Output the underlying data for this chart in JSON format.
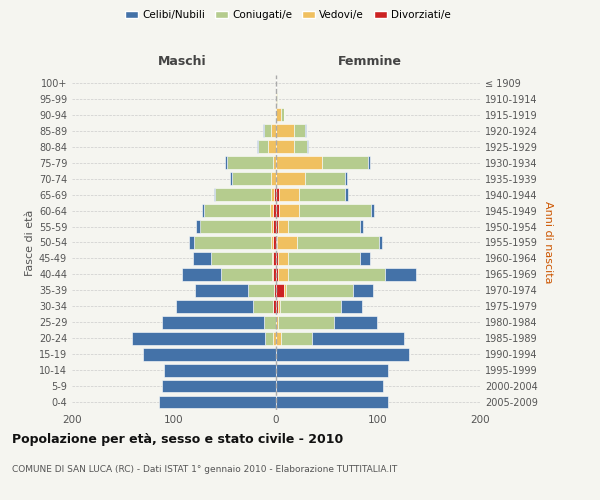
{
  "age_groups": [
    "0-4",
    "5-9",
    "10-14",
    "15-19",
    "20-24",
    "25-29",
    "30-34",
    "35-39",
    "40-44",
    "45-49",
    "50-54",
    "55-59",
    "60-64",
    "65-69",
    "70-74",
    "75-79",
    "80-84",
    "85-89",
    "90-94",
    "95-99",
    "100+"
  ],
  "birth_years": [
    "2005-2009",
    "2000-2004",
    "1995-1999",
    "1990-1994",
    "1985-1989",
    "1980-1984",
    "1975-1979",
    "1970-1974",
    "1965-1969",
    "1960-1964",
    "1955-1959",
    "1950-1954",
    "1945-1949",
    "1940-1944",
    "1935-1939",
    "1930-1934",
    "1925-1929",
    "1920-1924",
    "1915-1919",
    "1910-1914",
    "≤ 1909"
  ],
  "male": {
    "celibi": [
      115,
      112,
      110,
      130,
      130,
      100,
      75,
      52,
      38,
      17,
      5,
      3,
      2,
      1,
      2,
      2,
      1,
      1,
      0,
      0,
      0
    ],
    "coniugati": [
      0,
      0,
      0,
      0,
      8,
      12,
      20,
      25,
      50,
      60,
      75,
      70,
      65,
      55,
      38,
      45,
      10,
      7,
      1,
      0,
      0
    ],
    "vedovi": [
      0,
      0,
      0,
      0,
      3,
      0,
      0,
      0,
      1,
      1,
      2,
      2,
      3,
      3,
      5,
      3,
      8,
      5,
      0,
      0,
      0
    ],
    "divorziati": [
      0,
      0,
      0,
      0,
      0,
      0,
      3,
      2,
      3,
      3,
      3,
      3,
      3,
      2,
      0,
      0,
      0,
      0,
      0,
      0,
      0
    ]
  },
  "female": {
    "nubili": [
      110,
      105,
      110,
      130,
      90,
      42,
      20,
      20,
      30,
      10,
      3,
      3,
      3,
      3,
      2,
      2,
      1,
      1,
      0,
      0,
      0
    ],
    "coniugate": [
      0,
      0,
      0,
      0,
      30,
      55,
      60,
      65,
      95,
      70,
      80,
      70,
      70,
      45,
      40,
      45,
      12,
      10,
      3,
      1,
      0
    ],
    "vedove": [
      0,
      0,
      0,
      0,
      5,
      2,
      2,
      2,
      10,
      10,
      20,
      10,
      20,
      20,
      28,
      45,
      18,
      18,
      5,
      1,
      0
    ],
    "divorziate": [
      0,
      0,
      0,
      0,
      0,
      0,
      2,
      8,
      2,
      2,
      1,
      2,
      3,
      3,
      0,
      0,
      0,
      0,
      0,
      0,
      0
    ]
  },
  "colors": {
    "celibi": "#4472a8",
    "coniugati": "#b5cc8e",
    "vedovi": "#f0c060",
    "divorziati": "#cc2222"
  },
  "title": "Popolazione per età, sesso e stato civile - 2010",
  "subtitle": "COMUNE DI SAN LUCA (RC) - Dati ISTAT 1° gennaio 2010 - Elaborazione TUTTITALIA.IT",
  "ylabel_left": "Fasce di età",
  "ylabel_right": "Anni di nascita",
  "xlim": 200,
  "bg_color": "#f5f5f0",
  "grid_color": "#cccccc"
}
